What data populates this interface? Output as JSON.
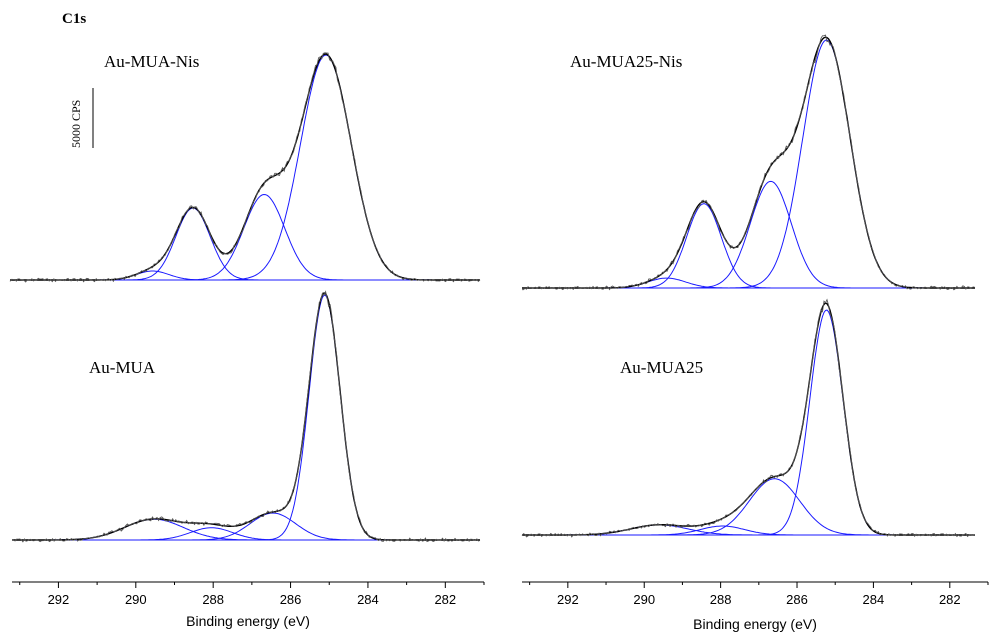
{
  "figure_label": "C1s",
  "scale_bar_label": "5000 CPS",
  "colors": {
    "envelope": "#000000",
    "raw": "#555555",
    "component": "#1a1aff"
  },
  "chart_data": [
    {
      "type": "line",
      "panel": "top-left",
      "title": "Au-MUA-Nis",
      "xlabel": "",
      "xlim": [
        293.2,
        281.0
      ],
      "baseline_level": 0,
      "peak_level": 1.0,
      "components": [
        {
          "center": 285.0,
          "height": 1.0,
          "fwhm": 1.55
        },
        {
          "center": 286.6,
          "height": 0.38,
          "fwhm": 1.25
        },
        {
          "center": 288.45,
          "height": 0.32,
          "fwhm": 1.05
        },
        {
          "center": 289.5,
          "height": 0.04,
          "fwhm": 1.0
        }
      ]
    },
    {
      "type": "line",
      "panel": "top-right",
      "title": "Au-MUA25-Nis",
      "xlabel": "",
      "xlim": [
        293.2,
        281.0
      ],
      "baseline_level": 0,
      "peak_level": 1.0,
      "components": [
        {
          "center": 285.0,
          "height": 1.0,
          "fwhm": 1.5
        },
        {
          "center": 286.5,
          "height": 0.43,
          "fwhm": 1.3
        },
        {
          "center": 288.3,
          "height": 0.34,
          "fwhm": 1.1
        },
        {
          "center": 289.3,
          "height": 0.04,
          "fwhm": 1.2
        }
      ]
    },
    {
      "type": "line",
      "panel": "bottom-left",
      "title": "Au-MUA",
      "xlabel": "Binding energy (eV)",
      "xlim": [
        293.2,
        281.0
      ],
      "xticks": [
        292,
        290,
        288,
        286,
        284,
        282
      ],
      "baseline_level": 0,
      "peak_level": 1.0,
      "components": [
        {
          "center": 285.05,
          "height": 1.0,
          "fwhm": 0.95
        },
        {
          "center": 286.4,
          "height": 0.11,
          "fwhm": 1.4
        },
        {
          "center": 288.0,
          "height": 0.05,
          "fwhm": 1.3
        },
        {
          "center": 289.5,
          "height": 0.085,
          "fwhm": 1.8
        }
      ]
    },
    {
      "type": "line",
      "panel": "bottom-right",
      "title": "Au-MUA25",
      "xlabel": "Binding energy (eV)",
      "xlim": [
        293.2,
        281.0
      ],
      "xticks": [
        292,
        290,
        288,
        286,
        284,
        282
      ],
      "baseline_level": 0,
      "peak_level": 1.0,
      "components": [
        {
          "center": 285.0,
          "height": 1.0,
          "fwhm": 1.05
        },
        {
          "center": 286.4,
          "height": 0.25,
          "fwhm": 1.6
        },
        {
          "center": 287.8,
          "height": 0.04,
          "fwhm": 1.4
        },
        {
          "center": 289.5,
          "height": 0.045,
          "fwhm": 1.8
        }
      ]
    }
  ]
}
